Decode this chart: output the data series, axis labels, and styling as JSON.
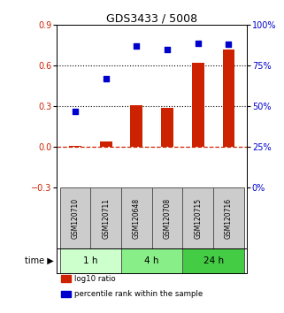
{
  "title": "GDS3433 / 5008",
  "samples": [
    "GSM120710",
    "GSM120711",
    "GSM120648",
    "GSM120708",
    "GSM120715",
    "GSM120716"
  ],
  "log10_ratio": [
    0.01,
    0.04,
    0.31,
    0.29,
    0.62,
    0.72
  ],
  "percentile_rank": [
    47,
    67,
    87,
    85,
    89,
    88
  ],
  "bar_color": "#cc2200",
  "dot_color": "#0000cc",
  "ylim_left": [
    -0.3,
    0.9
  ],
  "ylim_right": [
    0,
    100
  ],
  "yticks_left": [
    -0.3,
    0.0,
    0.3,
    0.6,
    0.9
  ],
  "yticks_right": [
    0,
    25,
    50,
    75,
    100
  ],
  "time_groups": [
    {
      "label": "1 h",
      "samples": [
        0,
        1
      ],
      "color": "#ccffcc"
    },
    {
      "label": "4 h",
      "samples": [
        2,
        3
      ],
      "color": "#88ee88"
    },
    {
      "label": "24 h",
      "samples": [
        4,
        5
      ],
      "color": "#44cc44"
    }
  ],
  "legend_items": [
    {
      "label": "log10 ratio",
      "color": "#cc2200"
    },
    {
      "label": "percentile rank within the sample",
      "color": "#0000cc"
    }
  ],
  "bg_color": "#ffffff",
  "sample_box_color": "#cccccc",
  "sample_box_edge": "#555555"
}
